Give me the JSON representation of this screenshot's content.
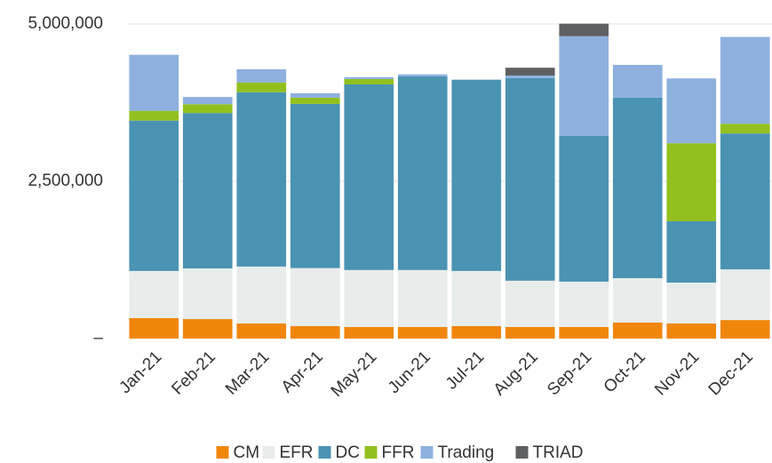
{
  "chart_data": {
    "type": "stacked_bar",
    "categories": [
      "Jan-21",
      "Feb-21",
      "Mar-21",
      "Apr-21",
      "May-21",
      "Jun-21",
      "Jul-21",
      "Aug-21",
      "Sep-21",
      "Oct-21",
      "Nov-21",
      "Dec-21"
    ],
    "series": [
      {
        "name": "CM",
        "color": "#f0870c",
        "values": [
          325000,
          310000,
          240000,
          200000,
          185000,
          185000,
          200000,
          185000,
          185000,
          255000,
          240000,
          295000
        ]
      },
      {
        "name": "EFR",
        "color": "#e8eceb",
        "values": [
          750000,
          805000,
          905000,
          920000,
          905000,
          905000,
          875000,
          735000,
          720000,
          705000,
          650000,
          805000
        ]
      },
      {
        "name": "DC",
        "color": "#4a93b3",
        "values": [
          2390000,
          2470000,
          2770000,
          2610000,
          2950000,
          3080000,
          3040000,
          3220000,
          2320000,
          2870000,
          975000,
          2160000
        ]
      },
      {
        "name": "FFR",
        "color": "#93c01f",
        "values": [
          155000,
          140000,
          155000,
          100000,
          85000,
          0,
          0,
          0,
          0,
          0,
          1240000,
          155000
        ]
      },
      {
        "name": "Trading",
        "color": "#8eb0df",
        "values": [
          890000,
          115000,
          210000,
          70000,
          30000,
          30000,
          0,
          40000,
          1580000,
          520000,
          1030000,
          1380000
        ]
      },
      {
        "name": "TRIAD",
        "color": "#5f6062",
        "values": [
          0,
          0,
          0,
          0,
          0,
          0,
          0,
          125000,
          200000,
          0,
          0,
          0
        ]
      }
    ],
    "ylim": [
      0,
      5000000
    ],
    "yticks": [
      {
        "value": 0,
        "label": "–"
      },
      {
        "value": 2500000,
        "label": "2,500,000"
      },
      {
        "value": 5000000,
        "label": "5,000,000"
      }
    ],
    "grid": true
  }
}
